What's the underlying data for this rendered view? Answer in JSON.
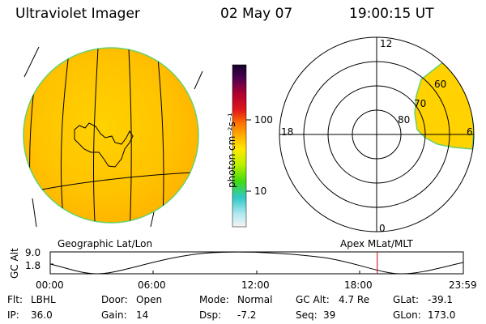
{
  "header": {
    "instrument": "Ultraviolet Imager",
    "date": "02 May 07",
    "time": "19:00:15 UT"
  },
  "colorbar": {
    "unit_label": "photon cm⁻²s⁻¹",
    "tick_100": "100",
    "tick_10": "10",
    "colors": [
      "#1a0033",
      "#5a0050",
      "#b00030",
      "#e01020",
      "#ff6a00",
      "#ffb000",
      "#fff000",
      "#b0f000",
      "#40e000",
      "#30d0c0",
      "#a0e8f0",
      "#f0f0f0"
    ]
  },
  "polar": {
    "mlt_12": "12",
    "mlt_18": "18",
    "mlt_6": "6",
    "mlt_0": "0",
    "lat_60": "60",
    "lat_70": "70",
    "lat_80": "80"
  },
  "labels": {
    "geo": "Geographic Lat/Lon",
    "apex": "Apex MLat/MLT"
  },
  "altplot": {
    "axis_label": "GC Alt",
    "y_max": "9.0",
    "y_min": "1.8",
    "times": [
      "00:00",
      "06:00",
      "12:00",
      "18:00",
      "23:59"
    ],
    "marker_hour": 19.0
  },
  "info": {
    "filter_label": "Flt:",
    "filter": "LBHL",
    "door_label": "Door:",
    "door": "Open",
    "mode_label": "Mode:",
    "mode": "Normal",
    "alt_label": "GC Alt:",
    "alt": "4.7 Re",
    "glat_label": "GLat:",
    "glat": "-39.1",
    "ip_label": "IP:",
    "ip": "36.0",
    "gain_label": "Gain:",
    "gain": "14",
    "dsp_label": "Dsp:",
    "dsp": "-7.2",
    "seq_label": "Seq:",
    "seq": "39",
    "glon_label": "GLon:",
    "glon": "173.0"
  }
}
